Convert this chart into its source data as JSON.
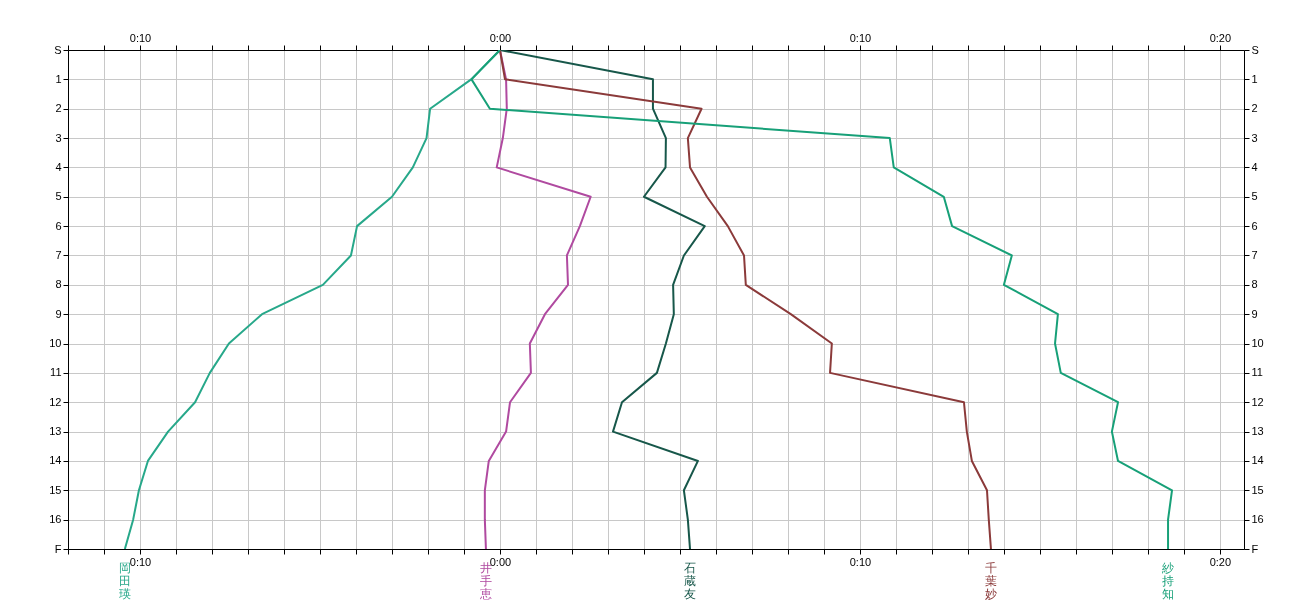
{
  "chart_data": {
    "type": "line",
    "orientation": "horizontal",
    "marker": "none",
    "line_style": "solid",
    "grid": true,
    "legend": false,
    "categories": [
      "S",
      "1",
      "2",
      "3",
      "4",
      "5",
      "6",
      "7",
      "8",
      "9",
      "10",
      "11",
      "12",
      "13",
      "14",
      "15",
      "16",
      "F"
    ],
    "xlim": [
      -12,
      20.67
    ],
    "xticks": [
      {
        "value": -12,
        "label": null
      },
      {
        "value": -11,
        "label": null
      },
      {
        "value": -10,
        "label": "0:10"
      },
      {
        "value": -9,
        "label": null
      },
      {
        "value": -8,
        "label": null
      },
      {
        "value": -7,
        "label": null
      },
      {
        "value": -6,
        "label": null
      },
      {
        "value": -5,
        "label": null
      },
      {
        "value": -4,
        "label": null
      },
      {
        "value": -3,
        "label": null
      },
      {
        "value": -2,
        "label": null
      },
      {
        "value": -1,
        "label": null
      },
      {
        "value": 0,
        "label": "0:00"
      },
      {
        "value": 1,
        "label": null
      },
      {
        "value": 2,
        "label": null
      },
      {
        "value": 3,
        "label": null
      },
      {
        "value": 4,
        "label": null
      },
      {
        "value": 5,
        "label": null
      },
      {
        "value": 6,
        "label": null
      },
      {
        "value": 7,
        "label": null
      },
      {
        "value": 8,
        "label": null
      },
      {
        "value": 9,
        "label": null
      },
      {
        "value": 10,
        "label": "0:10"
      },
      {
        "value": 11,
        "label": null
      },
      {
        "value": 12,
        "label": null
      },
      {
        "value": 13,
        "label": null
      },
      {
        "value": 14,
        "label": null
      },
      {
        "value": 15,
        "label": null
      },
      {
        "value": 16,
        "label": null
      },
      {
        "value": 17,
        "label": null
      },
      {
        "value": 18,
        "label": null
      },
      {
        "value": 19,
        "label": null
      },
      {
        "value": 20,
        "label": "0:20"
      }
    ],
    "x2lim": [
      -12,
      20.67
    ],
    "x2ticks": [
      {
        "value": -12,
        "label": null
      },
      {
        "value": -11,
        "label": null
      },
      {
        "value": -10,
        "label": "0:10"
      },
      {
        "value": -9,
        "label": null
      },
      {
        "value": -8,
        "label": null
      },
      {
        "value": -7,
        "label": null
      },
      {
        "value": -6,
        "label": null
      },
      {
        "value": -5,
        "label": null
      },
      {
        "value": -4,
        "label": null
      },
      {
        "value": -3,
        "label": null
      },
      {
        "value": -2,
        "label": null
      },
      {
        "value": -1,
        "label": null
      },
      {
        "value": 0,
        "label": "0:00"
      },
      {
        "value": 1,
        "label": null
      },
      {
        "value": 2,
        "label": null
      },
      {
        "value": 3,
        "label": null
      },
      {
        "value": 4,
        "label": null
      },
      {
        "value": 5,
        "label": null
      },
      {
        "value": 6,
        "label": null
      },
      {
        "value": 7,
        "label": null
      },
      {
        "value": 8,
        "label": null
      },
      {
        "value": 9,
        "label": null
      },
      {
        "value": 10,
        "label": "0:10"
      },
      {
        "value": 11,
        "label": null
      },
      {
        "value": 12,
        "label": null
      },
      {
        "value": 13,
        "label": null
      },
      {
        "value": 14,
        "label": null
      },
      {
        "value": 15,
        "label": null
      },
      {
        "value": 16,
        "label": null
      },
      {
        "value": 17,
        "label": null
      },
      {
        "value": 18,
        "label": null
      },
      {
        "value": 19,
        "label": null
      },
      {
        "value": 20,
        "label": "0:20"
      }
    ],
    "series": [
      {
        "name": "岡田瑛",
        "color": "#27a88a",
        "values": [
          0,
          -0.8,
          -1.94,
          -2.04,
          -2.42,
          -3.0,
          -3.97,
          -4.14,
          -4.92,
          -6.61,
          -7.53,
          -8.06,
          -8.47,
          -9.22,
          -9.78,
          -10.03,
          -10.19,
          -10.42
        ]
      },
      {
        "name": "井手恵",
        "color": "#b04aa0",
        "values": [
          0,
          0.17,
          0.19,
          0.08,
          -0.09,
          2.52,
          2.22,
          1.86,
          1.89,
          1.25,
          0.83,
          0.86,
          0.28,
          0.17,
          -0.31,
          -0.42,
          -0.42,
          -0.39
        ]
      },
      {
        "name": "石蔵友",
        "color": "#17574a",
        "values": [
          0,
          4.25,
          4.25,
          4.61,
          4.6,
          4.0,
          5.69,
          5.11,
          4.81,
          4.83,
          4.61,
          4.36,
          3.39,
          3.14,
          5.5,
          5.11,
          5.22,
          5.28
        ]
      },
      {
        "name": "千葉妙",
        "color": "#8b3a3a",
        "values": [
          0,
          0.14,
          5.6,
          5.22,
          5.28,
          5.75,
          6.33,
          6.78,
          6.83,
          8.08,
          9.22,
          9.17,
          12.89,
          12.97,
          13.11,
          13.53,
          13.58,
          13.64
        ]
      },
      {
        "name": "紗持知",
        "color": "#17a078",
        "values": [
          0,
          -0.79,
          -0.28,
          10.83,
          10.94,
          12.33,
          12.56,
          14.22,
          14.0,
          15.5,
          15.42,
          15.58,
          17.17,
          17.0,
          17.17,
          18.67,
          18.56,
          18.56
        ]
      }
    ]
  }
}
